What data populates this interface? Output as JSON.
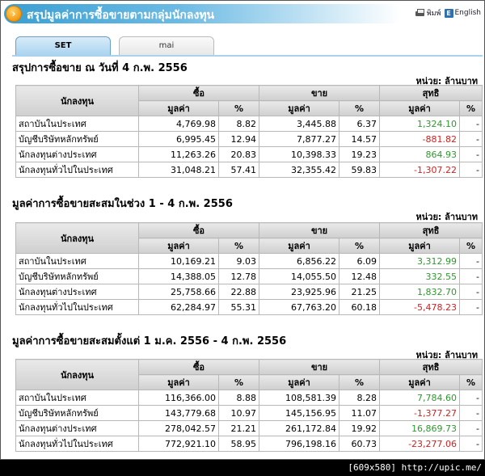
{
  "header": {
    "title": "สรุปมูลค่าการซื้อขายตามกลุ่มนักลงทุน",
    "print_label": "พิมพ์",
    "lang_label": "English",
    "lang_icon_text": "E"
  },
  "tabs": [
    {
      "label": "SET"
    },
    {
      "label": "mai"
    }
  ],
  "columns": {
    "investor": "นักลงทุน",
    "buy": "ซื้อ",
    "sell": "ขาย",
    "net": "สุทธิ",
    "value": "มูลค่า",
    "pct": "%"
  },
  "unit_label": "หน่วย: ล้านบาท",
  "sections": [
    {
      "title": "สรุปการซื้อขาย ณ วันที่ 4 ก.พ. 2556",
      "rows": [
        {
          "investor": "สถาบันในประเทศ",
          "buy_value": "4,769.98",
          "buy_pct": "8.82",
          "sell_value": "3,445.88",
          "sell_pct": "6.37",
          "net_value": "1,324.10",
          "net_pct": "-"
        },
        {
          "investor": "บัญชีบริษัทหลักทรัพย์",
          "buy_value": "6,995.45",
          "buy_pct": "12.94",
          "sell_value": "7,877.27",
          "sell_pct": "14.57",
          "net_value": "-881.82",
          "net_pct": "-"
        },
        {
          "investor": "นักลงทุนต่างประเทศ",
          "buy_value": "11,263.26",
          "buy_pct": "20.83",
          "sell_value": "10,398.33",
          "sell_pct": "19.23",
          "net_value": "864.93",
          "net_pct": "-"
        },
        {
          "investor": "นักลงทุนทั่วไปในประเทศ",
          "buy_value": "31,048.21",
          "buy_pct": "57.41",
          "sell_value": "32,355.42",
          "sell_pct": "59.83",
          "net_value": "-1,307.22",
          "net_pct": "-"
        }
      ]
    },
    {
      "title": "มูลค่าการซื้อขายสะสมในช่วง 1 - 4 ก.พ. 2556",
      "rows": [
        {
          "investor": "สถาบันในประเทศ",
          "buy_value": "10,169.21",
          "buy_pct": "9.03",
          "sell_value": "6,856.22",
          "sell_pct": "6.09",
          "net_value": "3,312.99",
          "net_pct": "-"
        },
        {
          "investor": "บัญชีบริษัทหลักทรัพย์",
          "buy_value": "14,388.05",
          "buy_pct": "12.78",
          "sell_value": "14,055.50",
          "sell_pct": "12.48",
          "net_value": "332.55",
          "net_pct": "-"
        },
        {
          "investor": "นักลงทุนต่างประเทศ",
          "buy_value": "25,758.66",
          "buy_pct": "22.88",
          "sell_value": "23,925.96",
          "sell_pct": "21.25",
          "net_value": "1,832.70",
          "net_pct": "-"
        },
        {
          "investor": "นักลงทุนทั่วไปในประเทศ",
          "buy_value": "62,284.97",
          "buy_pct": "55.31",
          "sell_value": "67,763.20",
          "sell_pct": "60.18",
          "net_value": "-5,478.23",
          "net_pct": "-"
        }
      ]
    },
    {
      "title": "มูลค่าการซื้อขายสะสมตั้งแต่ 1 ม.ค. 2556 - 4 ก.พ. 2556",
      "rows": [
        {
          "investor": "สถาบันในประเทศ",
          "buy_value": "116,366.00",
          "buy_pct": "8.88",
          "sell_value": "108,581.39",
          "sell_pct": "8.28",
          "net_value": "7,784.60",
          "net_pct": "-"
        },
        {
          "investor": "บัญชีบริษัทหลักทรัพย์",
          "buy_value": "143,779.68",
          "buy_pct": "10.97",
          "sell_value": "145,156.95",
          "sell_pct": "11.07",
          "net_value": "-1,377.27",
          "net_pct": "-"
        },
        {
          "investor": "นักลงทุนต่างประเทศ",
          "buy_value": "278,042.57",
          "buy_pct": "21.21",
          "sell_value": "261,172.84",
          "sell_pct": "19.92",
          "net_value": "16,869.73",
          "net_pct": "-"
        },
        {
          "investor": "นักลงทุนทั่วไปในประเทศ",
          "buy_value": "772,921.10",
          "buy_pct": "58.95",
          "sell_value": "796,198.16",
          "sell_pct": "60.73",
          "net_value": "-23,277.06",
          "net_pct": "-"
        }
      ]
    }
  ],
  "footer": {
    "text": "[609x580] http://upic.me/"
  },
  "colors": {
    "positive": "#2c9a2c",
    "negative": "#d42020",
    "header_blue": "#3a9fd2",
    "icon_orange": "#f39a12"
  }
}
